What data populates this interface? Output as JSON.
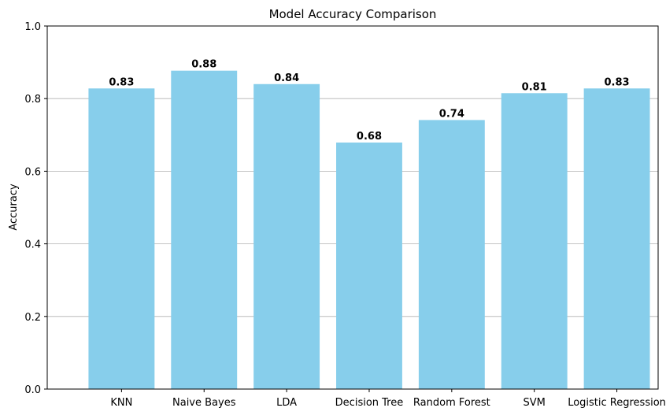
{
  "chart_data": {
    "type": "bar",
    "title": "Model Accuracy Comparison",
    "xlabel": "",
    "ylabel": "Accuracy",
    "categories": [
      "KNN",
      "Naive Bayes",
      "LDA",
      "Decision Tree",
      "Random Forest",
      "SVM",
      "Logistic Regression"
    ],
    "values": [
      0.828,
      0.877,
      0.84,
      0.679,
      0.741,
      0.815,
      0.828
    ],
    "value_labels": [
      "0.83",
      "0.88",
      "0.84",
      "0.68",
      "0.74",
      "0.81",
      "0.83"
    ],
    "ylim": [
      0,
      1.0
    ],
    "yticks": [
      0.0,
      0.2,
      0.4,
      0.6,
      0.8,
      1.0
    ],
    "ytick_labels": [
      "0.0",
      "0.2",
      "0.4",
      "0.6",
      "0.8",
      "1.0"
    ],
    "grid": "y",
    "bar_color": "#87CEEB",
    "grid_color": "#b0b0b0"
  }
}
